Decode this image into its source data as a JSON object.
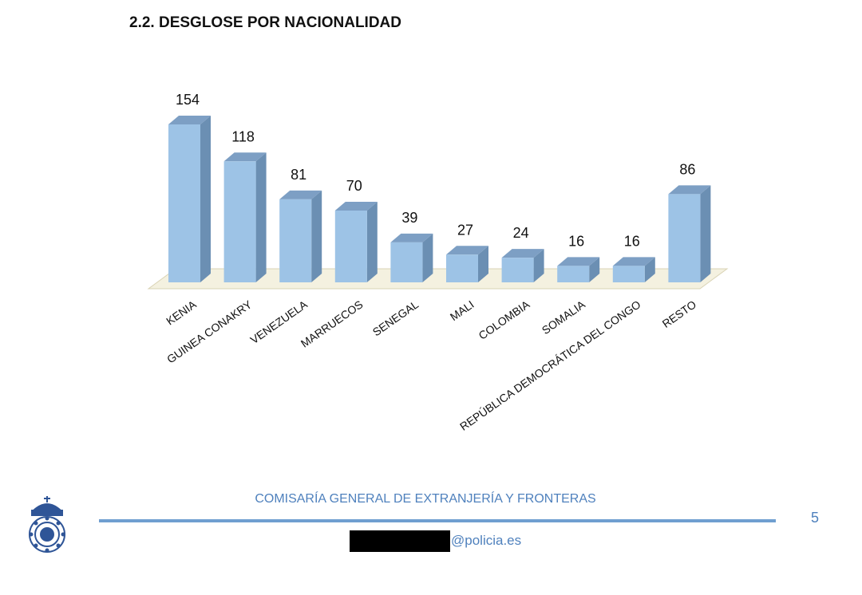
{
  "section": {
    "title": "2.2. DESGLOSE POR NACIONALIDAD"
  },
  "chart_data": {
    "type": "bar",
    "title": "",
    "xlabel": "",
    "ylabel": "",
    "ylim": [
      0,
      154
    ],
    "grid": false,
    "categories": [
      "KENIA",
      "GUINEA CONAKRY",
      "VENEZUELA",
      "MARRUECOS",
      "SENEGAL",
      "MALI",
      "COLOMBIA",
      "SOMALIA",
      "REPÚBLICA DEMOCRÁTICA DEL CONGO",
      "RESTO"
    ],
    "values": [
      154,
      118,
      81,
      70,
      39,
      27,
      24,
      16,
      16,
      86
    ],
    "colors": {
      "bar_front": "#9dc3e6",
      "bar_side": "#6b8fb3",
      "bar_top": "#7d9fc4",
      "floor": "#f4f1e0"
    }
  },
  "footer": {
    "organization": "COMISARÍA GENERAL DE EXTRANJERÍA Y FRONTERAS",
    "page_number": "5",
    "email_domain": "@policia.es",
    "logo_icon": "police-crest-icon"
  }
}
